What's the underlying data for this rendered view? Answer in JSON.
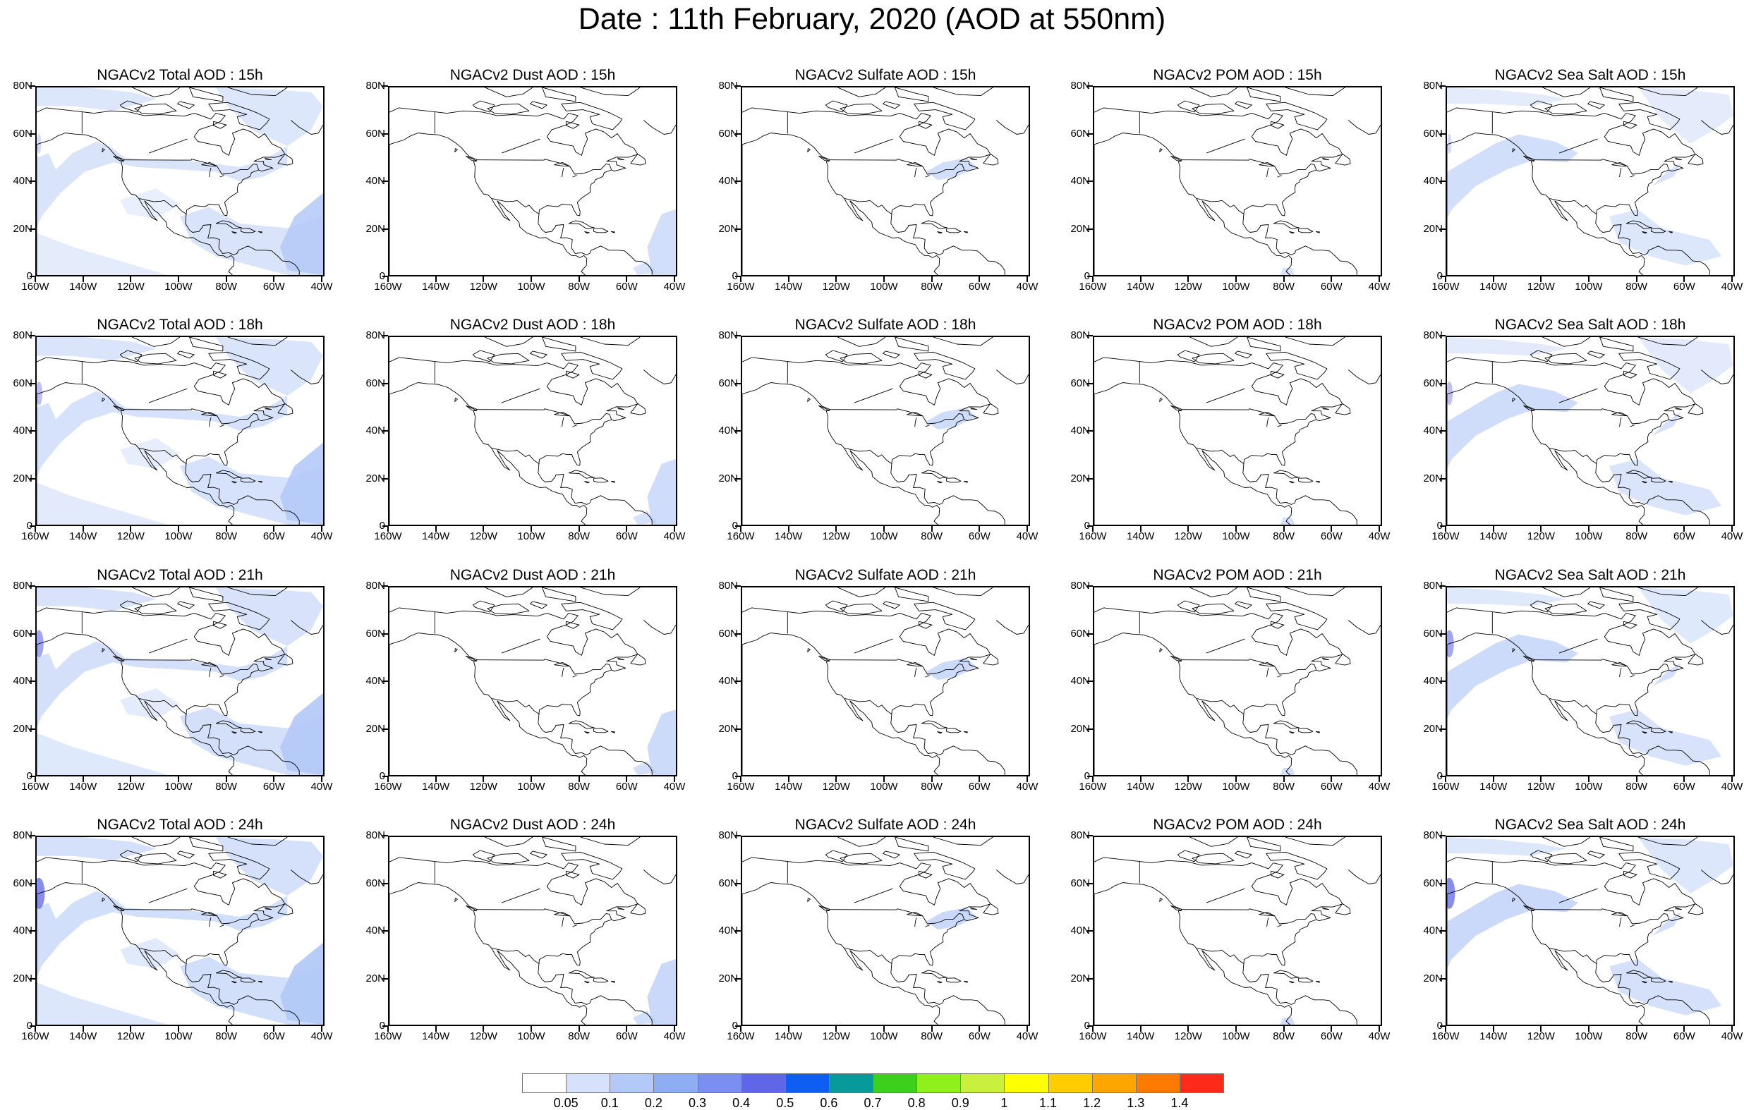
{
  "title": "Date : 11th February, 2020 (AOD at 550nm)",
  "x_tick_labels": [
    "160W",
    "140W",
    "120W",
    "100W",
    "80W",
    "60W",
    "40W"
  ],
  "y_tick_labels": [
    "80N",
    "60N",
    "40N",
    "20N",
    "0"
  ],
  "panels": [
    {
      "title": "NGACv2 Total AOD : 15h",
      "field": "total",
      "hour": 15
    },
    {
      "title": "NGACv2 Dust AOD : 15h",
      "field": "dust",
      "hour": 15
    },
    {
      "title": "NGACv2 Sulfate AOD : 15h",
      "field": "sulfate",
      "hour": 15
    },
    {
      "title": "NGACv2 POM AOD : 15h",
      "field": "pom",
      "hour": 15
    },
    {
      "title": "NGACv2 Sea Salt AOD : 15h",
      "field": "seasalt",
      "hour": 15
    },
    {
      "title": "NGACv2 Total AOD : 18h",
      "field": "total",
      "hour": 18
    },
    {
      "title": "NGACv2 Dust AOD : 18h",
      "field": "dust",
      "hour": 18
    },
    {
      "title": "NGACv2 Sulfate AOD : 18h",
      "field": "sulfate",
      "hour": 18
    },
    {
      "title": "NGACv2 POM AOD : 18h",
      "field": "pom",
      "hour": 18
    },
    {
      "title": "NGACv2 Sea Salt AOD : 18h",
      "field": "seasalt",
      "hour": 18
    },
    {
      "title": "NGACv2 Total AOD : 21h",
      "field": "total",
      "hour": 21
    },
    {
      "title": "NGACv2 Dust AOD : 21h",
      "field": "dust",
      "hour": 21
    },
    {
      "title": "NGACv2 Sulfate AOD : 21h",
      "field": "sulfate",
      "hour": 21
    },
    {
      "title": "NGACv2 POM AOD : 21h",
      "field": "pom",
      "hour": 21
    },
    {
      "title": "NGACv2 Sea Salt AOD : 21h",
      "field": "seasalt",
      "hour": 21
    },
    {
      "title": "NGACv2 Total AOD : 24h",
      "field": "total",
      "hour": 24
    },
    {
      "title": "NGACv2 Dust AOD : 24h",
      "field": "dust",
      "hour": 24
    },
    {
      "title": "NGACv2 Sulfate AOD : 24h",
      "field": "sulfate",
      "hour": 24
    },
    {
      "title": "NGACv2 POM AOD : 24h",
      "field": "pom",
      "hour": 24
    },
    {
      "title": "NGACv2 Sea Salt  AOD : 24h",
      "field": "seasalt",
      "hour": 24
    }
  ],
  "colorbar": {
    "labels": [
      "0.05",
      "0.1",
      "0.2",
      "0.3",
      "0.4",
      "0.5",
      "0.6",
      "0.7",
      "0.8",
      "0.9",
      "1",
      "1.1",
      "1.2",
      "1.3",
      "1.4"
    ],
    "colors": [
      "#ffffff",
      "#d6e2fb",
      "#b3c9f7",
      "#8fadf3",
      "#7a8ff0",
      "#5f67e8",
      "#0f5ef2",
      "#079a9a",
      "#3ccf1c",
      "#8ff01c",
      "#c8f03c",
      "#ffff00",
      "#ffcc00",
      "#ffa500",
      "#ff7a00",
      "#ff2a1a"
    ]
  },
  "colors": {
    "land_outline": "#000000",
    "background": "#ffffff"
  }
}
